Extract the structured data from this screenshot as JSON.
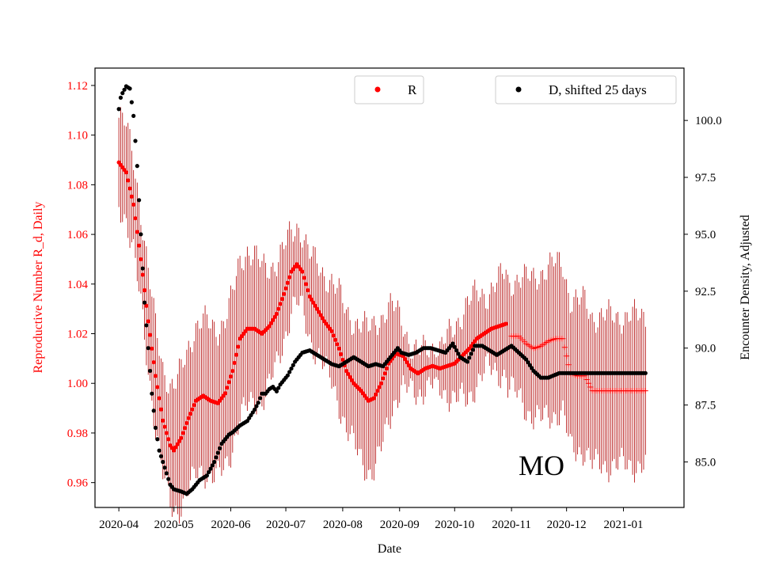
{
  "chart_data": {
    "type": "scatter",
    "xlabel": "Date",
    "ylabel_left": "Reproductive Number R_d, Daily",
    "ylabel_right": "Encounter Density, Adjusted",
    "annotation": "MO",
    "colors": {
      "left": "#ff0000",
      "right": "#000000",
      "errorbar": "#b00000",
      "axis": "#000000"
    },
    "x_range_days": [
      -13,
      308
    ],
    "x_ticks": [
      {
        "day": 0,
        "label": "2020-04"
      },
      {
        "day": 30,
        "label": "2020-05"
      },
      {
        "day": 61,
        "label": "2020-06"
      },
      {
        "day": 91,
        "label": "2020-07"
      },
      {
        "day": 122,
        "label": "2020-08"
      },
      {
        "day": 153,
        "label": "2020-09"
      },
      {
        "day": 183,
        "label": "2020-10"
      },
      {
        "day": 214,
        "label": "2020-11"
      },
      {
        "day": 244,
        "label": "2020-12"
      },
      {
        "day": 275,
        "label": "2021-01"
      }
    ],
    "y_left_range": [
      0.95,
      1.127
    ],
    "y_left_ticks": [
      0.96,
      0.98,
      1.0,
      1.02,
      1.04,
      1.06,
      1.08,
      1.1,
      1.12
    ],
    "y_left_tick_labels": [
      "0.96",
      "0.98",
      "1.00",
      "1.02",
      "1.04",
      "1.06",
      "1.08",
      "1.10",
      "1.12"
    ],
    "y_right_range": [
      83.0,
      102.3
    ],
    "y_right_ticks": [
      85.0,
      87.5,
      90.0,
      92.5,
      95.0,
      97.5,
      100.0
    ],
    "y_right_tick_labels": [
      "85.0",
      "87.5",
      "90.0",
      "92.5",
      "95.0",
      "97.5",
      "100.0"
    ],
    "legend": [
      {
        "label": "R",
        "position": "top-center",
        "color": "#ff0000"
      },
      {
        "label": "D, shifted 25 days",
        "position": "top-right",
        "color": "#000000"
      }
    ],
    "series": [
      {
        "name": "R",
        "axis": "left",
        "marker": "dot",
        "knots": [
          [
            0,
            1.089
          ],
          [
            4,
            1.085
          ],
          [
            8,
            1.072
          ],
          [
            12,
            1.05
          ],
          [
            16,
            1.025
          ],
          [
            20,
            1.003
          ],
          [
            24,
            0.985
          ],
          [
            28,
            0.975
          ],
          [
            30,
            0.973
          ],
          [
            34,
            0.978
          ],
          [
            38,
            0.986
          ],
          [
            42,
            0.993
          ],
          [
            46,
            0.995
          ],
          [
            50,
            0.993
          ],
          [
            54,
            0.992
          ],
          [
            58,
            0.996
          ],
          [
            62,
            1.005
          ],
          [
            66,
            1.018
          ],
          [
            70,
            1.022
          ],
          [
            74,
            1.022
          ],
          [
            78,
            1.02
          ],
          [
            82,
            1.023
          ],
          [
            86,
            1.028
          ],
          [
            90,
            1.036
          ],
          [
            94,
            1.045
          ],
          [
            97,
            1.048
          ],
          [
            100,
            1.045
          ],
          [
            104,
            1.035
          ],
          [
            108,
            1.03
          ],
          [
            112,
            1.025
          ],
          [
            116,
            1.021
          ],
          [
            120,
            1.014
          ],
          [
            124,
            1.005
          ],
          [
            128,
            1.0
          ],
          [
            132,
            0.997
          ],
          [
            136,
            0.993
          ],
          [
            139,
            0.994
          ],
          [
            143,
            1.0
          ],
          [
            147,
            1.008
          ],
          [
            151,
            1.012
          ],
          [
            155,
            1.011
          ],
          [
            159,
            1.006
          ],
          [
            163,
            1.004
          ],
          [
            167,
            1.006
          ],
          [
            171,
            1.007
          ],
          [
            175,
            1.006
          ],
          [
            179,
            1.007
          ],
          [
            183,
            1.008
          ],
          [
            187,
            1.011
          ],
          [
            191,
            1.014
          ],
          [
            195,
            1.018
          ],
          [
            199,
            1.02
          ],
          [
            203,
            1.022
          ],
          [
            207,
            1.023
          ],
          [
            211,
            1.024
          ]
        ],
        "err_knots": [
          [
            0,
            0.018
          ],
          [
            20,
            0.02
          ],
          [
            40,
            0.03
          ],
          [
            60,
            0.03
          ],
          [
            70,
            0.032
          ],
          [
            95,
            0.015
          ],
          [
            110,
            0.018
          ],
          [
            140,
            0.03
          ],
          [
            160,
            0.008
          ],
          [
            175,
            0.008
          ],
          [
            190,
            0.02
          ],
          [
            200,
            0.015
          ],
          [
            230,
            0.03
          ],
          [
            270,
            0.03
          ],
          [
            287,
            0.03
          ]
        ]
      },
      {
        "name": "R (crosses)",
        "axis": "left",
        "marker": "plus",
        "knots": [
          [
            214,
            1.019
          ],
          [
            218,
            1.019
          ],
          [
            222,
            1.016
          ],
          [
            226,
            1.014
          ],
          [
            230,
            1.015
          ],
          [
            234,
            1.017
          ],
          [
            238,
            1.018
          ],
          [
            242,
            1.018
          ],
          [
            246,
            1.004
          ],
          [
            250,
            1.003
          ],
          [
            254,
            1.003
          ],
          [
            258,
            0.997
          ],
          [
            264,
            0.997
          ],
          [
            270,
            0.997
          ],
          [
            276,
            0.997
          ],
          [
            282,
            0.997
          ],
          [
            287,
            0.997
          ]
        ]
      },
      {
        "name": "D, shifted 25 days",
        "axis": "right",
        "marker": "dot",
        "knots": [
          [
            0,
            100.5
          ],
          [
            1,
            101.0
          ],
          [
            2,
            101.2
          ],
          [
            4,
            101.5
          ],
          [
            6,
            101.4
          ],
          [
            8,
            100.2
          ],
          [
            10,
            98.0
          ],
          [
            12,
            95.0
          ],
          [
            14,
            92.0
          ],
          [
            16,
            90.0
          ],
          [
            18,
            88.0
          ],
          [
            20,
            86.5
          ],
          [
            22,
            85.5
          ],
          [
            24,
            85.0
          ],
          [
            26,
            84.5
          ],
          [
            28,
            84.0
          ],
          [
            30,
            83.8
          ],
          [
            34,
            83.7
          ],
          [
            37,
            83.6
          ],
          [
            40,
            83.8
          ],
          [
            44,
            84.2
          ],
          [
            48,
            84.4
          ],
          [
            52,
            85.0
          ],
          [
            56,
            85.8
          ],
          [
            60,
            86.2
          ],
          [
            62,
            86.3
          ],
          [
            66,
            86.6
          ],
          [
            70,
            86.8
          ],
          [
            74,
            87.3
          ],
          [
            76,
            87.6
          ],
          [
            78,
            88.0
          ],
          [
            80,
            88.0
          ],
          [
            82,
            88.2
          ],
          [
            84,
            88.3
          ],
          [
            86,
            88.1
          ],
          [
            88,
            88.4
          ],
          [
            90,
            88.6
          ],
          [
            92,
            88.8
          ],
          [
            96,
            89.4
          ],
          [
            100,
            89.8
          ],
          [
            104,
            89.9
          ],
          [
            108,
            89.7
          ],
          [
            112,
            89.5
          ],
          [
            116,
            89.3
          ],
          [
            120,
            89.2
          ],
          [
            124,
            89.4
          ],
          [
            128,
            89.6
          ],
          [
            132,
            89.4
          ],
          [
            136,
            89.2
          ],
          [
            140,
            89.3
          ],
          [
            144,
            89.2
          ],
          [
            148,
            89.6
          ],
          [
            152,
            90.0
          ],
          [
            154,
            89.8
          ],
          [
            158,
            89.7
          ],
          [
            162,
            89.8
          ],
          [
            166,
            90.0
          ],
          [
            170,
            90.0
          ],
          [
            174,
            89.9
          ],
          [
            178,
            89.8
          ],
          [
            182,
            90.2
          ],
          [
            186,
            89.6
          ],
          [
            190,
            89.4
          ],
          [
            194,
            90.1
          ],
          [
            198,
            90.1
          ],
          [
            202,
            89.9
          ],
          [
            206,
            89.7
          ],
          [
            210,
            89.9
          ],
          [
            214,
            90.1
          ],
          [
            218,
            89.8
          ],
          [
            222,
            89.5
          ],
          [
            226,
            89.0
          ],
          [
            230,
            88.7
          ],
          [
            234,
            88.7
          ],
          [
            240,
            88.9
          ],
          [
            250,
            88.9
          ],
          [
            260,
            88.9
          ],
          [
            270,
            88.9
          ],
          [
            280,
            88.9
          ],
          [
            287,
            88.9
          ]
        ]
      }
    ]
  }
}
